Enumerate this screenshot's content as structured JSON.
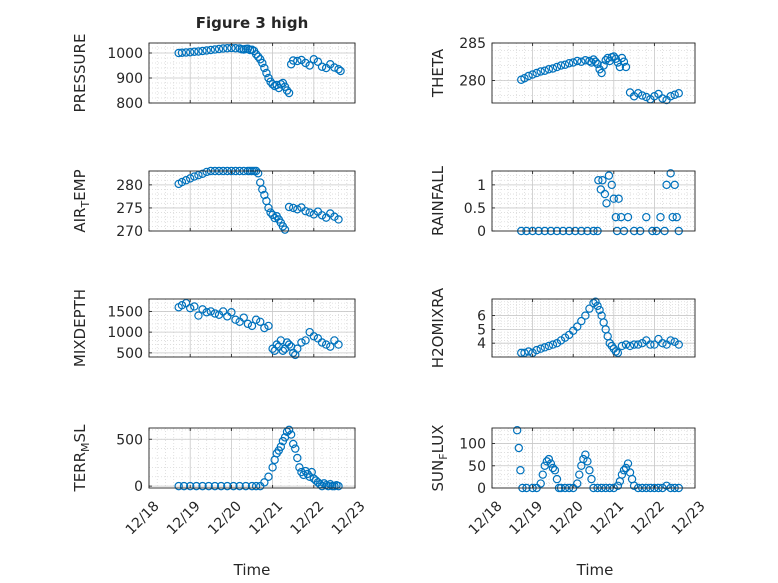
{
  "figure": {
    "title": "Figure 3 high",
    "marker_color": "#0072BD",
    "axis_color": "#262626",
    "grid_color": "#d9d9d9",
    "x_tick_labels": [
      "12/18",
      "12/19",
      "12/20",
      "12/21",
      "12/22",
      "12/23"
    ],
    "x_label": "Time"
  },
  "chart_data": [
    {
      "type": "scatter",
      "name_key": "pressure",
      "panel": "left-1",
      "ylabel": "PRESSURE",
      "ylim": [
        800,
        1040
      ],
      "yticks": [
        800,
        900,
        1000
      ],
      "xlim": [
        0,
        5
      ],
      "xticks": [
        0,
        1,
        2,
        3,
        4,
        5
      ],
      "x": [
        0.72,
        0.8,
        0.9,
        1.0,
        1.1,
        1.2,
        1.3,
        1.4,
        1.5,
        1.6,
        1.7,
        1.8,
        1.9,
        2.0,
        2.1,
        2.2,
        2.25,
        2.3,
        2.35,
        2.4,
        2.45,
        2.5,
        2.55,
        2.6,
        2.65,
        2.7,
        2.75,
        2.8,
        2.85,
        2.9,
        2.95,
        3.0,
        3.05,
        3.1,
        3.15,
        3.2,
        3.25,
        3.3,
        3.35,
        3.4,
        3.45,
        3.5,
        3.6,
        3.7,
        3.8,
        3.9,
        4.0,
        4.1,
        4.2,
        4.3,
        4.4,
        4.5,
        4.6,
        4.65
      ],
      "y": [
        1000,
        1001,
        1002,
        1003,
        1005,
        1006,
        1008,
        1010,
        1012,
        1014,
        1016,
        1018,
        1019,
        1020,
        1019,
        1018,
        1015,
        1014,
        1016,
        1017,
        1012,
        1013,
        1008,
        995,
        985,
        975,
        960,
        940,
        920,
        900,
        885,
        875,
        868,
        872,
        860,
        875,
        880,
        865,
        850,
        840,
        955,
        970,
        968,
        972,
        960,
        950,
        975,
        965,
        945,
        940,
        955,
        942,
        935,
        928
      ]
    },
    {
      "type": "scatter",
      "name_key": "theta",
      "panel": "right-1",
      "ylabel": "THETA",
      "ylim": [
        277,
        285
      ],
      "yticks": [
        280,
        285
      ],
      "xlim": [
        0,
        5
      ],
      "xticks": [
        0,
        1,
        2,
        3,
        4,
        5
      ],
      "x": [
        0.72,
        0.8,
        0.9,
        1.0,
        1.1,
        1.2,
        1.3,
        1.4,
        1.5,
        1.6,
        1.7,
        1.8,
        1.9,
        2.0,
        2.1,
        2.2,
        2.3,
        2.4,
        2.45,
        2.5,
        2.55,
        2.6,
        2.65,
        2.7,
        2.75,
        2.8,
        2.85,
        2.9,
        2.95,
        3.0,
        3.05,
        3.1,
        3.15,
        3.2,
        3.25,
        3.3,
        3.4,
        3.5,
        3.6,
        3.7,
        3.8,
        3.9,
        4.0,
        4.1,
        4.2,
        4.3,
        4.4,
        4.5,
        4.6
      ],
      "y": [
        280.1,
        280.3,
        280.6,
        280.8,
        281.0,
        281.2,
        281.3,
        281.5,
        281.6,
        281.8,
        282.0,
        282.1,
        282.3,
        282.4,
        282.6,
        282.5,
        282.7,
        282.6,
        282.4,
        282.8,
        282.5,
        282.2,
        281.5,
        281.0,
        282.0,
        282.7,
        283.0,
        282.6,
        283.1,
        283.2,
        282.9,
        282.4,
        281.8,
        283.0,
        282.5,
        281.8,
        278.4,
        277.9,
        278.3,
        278.0,
        277.8,
        277.5,
        277.9,
        278.2,
        277.6,
        277.4,
        277.9,
        278.1,
        278.3
      ]
    },
    {
      "type": "scatter",
      "name_key": "air_temp",
      "panel": "left-2",
      "ylabel": "AIR_TEMP",
      "ylim": [
        270,
        283
      ],
      "yticks": [
        270,
        275,
        280
      ],
      "xlim": [
        0,
        5
      ],
      "xticks": [
        0,
        1,
        2,
        3,
        4,
        5
      ],
      "x": [
        0.72,
        0.8,
        0.9,
        1.0,
        1.1,
        1.2,
        1.3,
        1.4,
        1.5,
        1.6,
        1.7,
        1.8,
        1.9,
        2.0,
        2.1,
        2.2,
        2.3,
        2.4,
        2.45,
        2.5,
        2.55,
        2.6,
        2.65,
        2.7,
        2.75,
        2.8,
        2.85,
        2.9,
        2.95,
        3.0,
        3.05,
        3.1,
        3.15,
        3.2,
        3.25,
        3.3,
        3.4,
        3.5,
        3.6,
        3.7,
        3.8,
        3.9,
        4.0,
        4.1,
        4.2,
        4.3,
        4.4,
        4.5,
        4.6
      ],
      "y": [
        280.2,
        280.6,
        281.0,
        281.4,
        281.8,
        282.1,
        282.4,
        282.8,
        283.1,
        283.4,
        283.7,
        284.0,
        284.3,
        284.6,
        284.8,
        285.0,
        284.9,
        284.7,
        284.9,
        284.5,
        284.6,
        284.0,
        282.5,
        280.5,
        279.0,
        277.8,
        276.5,
        275.0,
        274.0,
        273.5,
        272.8,
        273.2,
        272.5,
        271.8,
        271.0,
        270.3,
        275.2,
        275.0,
        274.7,
        275.1,
        274.3,
        274.0,
        273.6,
        274.2,
        273.4,
        272.9,
        273.8,
        273.1,
        272.5
      ]
    },
    {
      "type": "scatter",
      "name_key": "rainfall",
      "panel": "right-2",
      "ylabel": "RAINFALL",
      "ylim": [
        0,
        1.3
      ],
      "yticks": [
        0,
        0.5,
        1
      ],
      "yticklabels": [
        "0",
        "0.5",
        "1"
      ],
      "xlim": [
        0,
        5
      ],
      "xticks": [
        0,
        1,
        2,
        3,
        4,
        5
      ],
      "x": [
        0.72,
        0.85,
        1.0,
        1.15,
        1.3,
        1.45,
        1.6,
        1.75,
        1.9,
        2.05,
        2.2,
        2.35,
        2.5,
        2.6,
        2.62,
        2.68,
        2.72,
        2.78,
        2.82,
        2.88,
        2.95,
        3.0,
        3.05,
        3.08,
        3.12,
        3.18,
        3.25,
        3.35,
        3.5,
        3.65,
        3.8,
        3.95,
        4.05,
        4.15,
        4.25,
        4.3,
        4.4,
        4.45,
        4.5,
        4.55,
        4.6
      ],
      "y": [
        0,
        0,
        0,
        0,
        0,
        0,
        0,
        0,
        0,
        0,
        0,
        0,
        0,
        0,
        1.1,
        0.9,
        1.1,
        0.8,
        0.6,
        1.2,
        1.0,
        0.7,
        0.3,
        0.0,
        0.7,
        0.3,
        0.0,
        0.3,
        0.0,
        0.0,
        0.3,
        0.0,
        0.0,
        0.3,
        0.0,
        1.0,
        1.25,
        0.3,
        1.0,
        0.3,
        0.0
      ]
    },
    {
      "type": "scatter",
      "name_key": "mixdepth",
      "panel": "left-3",
      "ylabel": "MIXDEPTH",
      "ylim": [
        400,
        1800
      ],
      "yticks": [
        500,
        1000,
        1500
      ],
      "xlim": [
        0,
        5
      ],
      "xticks": [
        0,
        1,
        2,
        3,
        4,
        5
      ],
      "x": [
        0.72,
        0.8,
        0.9,
        1.0,
        1.1,
        1.2,
        1.3,
        1.4,
        1.5,
        1.6,
        1.7,
        1.8,
        1.9,
        2.0,
        2.1,
        2.2,
        2.3,
        2.4,
        2.5,
        2.6,
        2.7,
        2.8,
        2.9,
        3.0,
        3.05,
        3.1,
        3.15,
        3.2,
        3.25,
        3.3,
        3.35,
        3.4,
        3.45,
        3.5,
        3.55,
        3.6,
        3.7,
        3.8,
        3.9,
        4.0,
        4.1,
        4.2,
        4.3,
        4.4,
        4.5,
        4.6
      ],
      "y": [
        1600,
        1650,
        1700,
        1580,
        1620,
        1400,
        1550,
        1480,
        1500,
        1450,
        1420,
        1500,
        1380,
        1480,
        1300,
        1250,
        1350,
        1200,
        1150,
        1300,
        1250,
        1100,
        1150,
        600,
        550,
        700,
        650,
        800,
        550,
        600,
        750,
        700,
        650,
        500,
        450,
        600,
        750,
        800,
        1000,
        900,
        850,
        750,
        700,
        650,
        800,
        700
      ]
    },
    {
      "type": "scatter",
      "name_key": "h2omixra",
      "panel": "right-3",
      "ylabel": "H2OMIXRA",
      "ylim": [
        3,
        7.2
      ],
      "yticks": [
        4,
        5,
        6
      ],
      "xlim": [
        0,
        5
      ],
      "xticks": [
        0,
        1,
        2,
        3,
        4,
        5
      ],
      "x": [
        0.72,
        0.8,
        0.9,
        1.0,
        1.1,
        1.2,
        1.3,
        1.4,
        1.5,
        1.6,
        1.7,
        1.8,
        1.9,
        2.0,
        2.1,
        2.2,
        2.3,
        2.4,
        2.5,
        2.55,
        2.6,
        2.65,
        2.7,
        2.75,
        2.8,
        2.85,
        2.9,
        2.95,
        3.0,
        3.05,
        3.1,
        3.2,
        3.3,
        3.4,
        3.5,
        3.6,
        3.7,
        3.8,
        3.9,
        4.0,
        4.1,
        4.2,
        4.3,
        4.4,
        4.5,
        4.6
      ],
      "y": [
        3.3,
        3.3,
        3.4,
        3.3,
        3.5,
        3.6,
        3.7,
        3.8,
        3.9,
        4.0,
        4.2,
        4.4,
        4.6,
        4.9,
        5.2,
        5.6,
        6.0,
        6.5,
        6.9,
        7.0,
        6.7,
        6.4,
        6.0,
        5.5,
        5.0,
        4.5,
        4.0,
        3.8,
        3.6,
        3.4,
        3.3,
        3.8,
        3.9,
        3.8,
        3.9,
        3.9,
        4.0,
        4.2,
        3.9,
        3.9,
        4.3,
        4.0,
        3.9,
        4.2,
        4.1,
        3.9
      ]
    },
    {
      "type": "scatter",
      "name_key": "terr_msl",
      "panel": "left-4",
      "ylabel": "TERR_MSL",
      "ylim": [
        -20,
        620
      ],
      "yticks": [
        0,
        500
      ],
      "xlim": [
        0,
        5
      ],
      "xticks": [
        0,
        1,
        2,
        3,
        4,
        5
      ],
      "x": [
        0.72,
        0.85,
        1.0,
        1.15,
        1.3,
        1.45,
        1.6,
        1.75,
        1.9,
        2.05,
        2.2,
        2.35,
        2.5,
        2.6,
        2.7,
        2.8,
        2.9,
        3.0,
        3.05,
        3.1,
        3.15,
        3.2,
        3.25,
        3.3,
        3.35,
        3.4,
        3.45,
        3.5,
        3.55,
        3.6,
        3.65,
        3.7,
        3.75,
        3.8,
        3.85,
        3.9,
        3.95,
        4.0,
        4.05,
        4.1,
        4.15,
        4.2,
        4.25,
        4.3,
        4.35,
        4.4,
        4.45,
        4.5,
        4.55,
        4.6
      ],
      "y": [
        0,
        0,
        0,
        0,
        0,
        0,
        0,
        0,
        0,
        0,
        0,
        0,
        0,
        0,
        0,
        40,
        100,
        200,
        280,
        350,
        380,
        420,
        480,
        520,
        580,
        600,
        550,
        450,
        400,
        300,
        200,
        150,
        120,
        160,
        130,
        100,
        150,
        80,
        60,
        40,
        20,
        0,
        30,
        10,
        0,
        20,
        0,
        0,
        10,
        0
      ]
    },
    {
      "type": "scatter",
      "name_key": "sun_flux",
      "panel": "right-4",
      "ylabel": "SUN_FLUX",
      "ylim": [
        0,
        135
      ],
      "yticks": [
        0,
        50,
        100
      ],
      "xlim": [
        0,
        5
      ],
      "xticks": [
        0,
        1,
        2,
        3,
        4,
        5
      ],
      "x": [
        0.62,
        0.66,
        0.7,
        0.75,
        0.85,
        1.0,
        1.1,
        1.2,
        1.25,
        1.3,
        1.35,
        1.4,
        1.45,
        1.5,
        1.55,
        1.6,
        1.65,
        1.7,
        1.8,
        1.9,
        2.0,
        2.1,
        2.15,
        2.2,
        2.25,
        2.3,
        2.35,
        2.4,
        2.45,
        2.5,
        2.6,
        2.7,
        2.8,
        2.9,
        3.0,
        3.1,
        3.15,
        3.2,
        3.25,
        3.3,
        3.35,
        3.4,
        3.45,
        3.5,
        3.6,
        3.7,
        3.8,
        3.9,
        4.0,
        4.1,
        4.2,
        4.3,
        4.4,
        4.5,
        4.6
      ],
      "y": [
        130,
        90,
        40,
        0,
        0,
        0,
        0,
        10,
        30,
        50,
        60,
        65,
        55,
        45,
        40,
        20,
        0,
        0,
        0,
        0,
        0,
        10,
        30,
        50,
        65,
        75,
        60,
        40,
        20,
        0,
        0,
        0,
        0,
        0,
        0,
        5,
        15,
        30,
        40,
        45,
        55,
        35,
        20,
        5,
        0,
        0,
        0,
        0,
        0,
        0,
        0,
        5,
        0,
        0,
        0
      ]
    }
  ]
}
